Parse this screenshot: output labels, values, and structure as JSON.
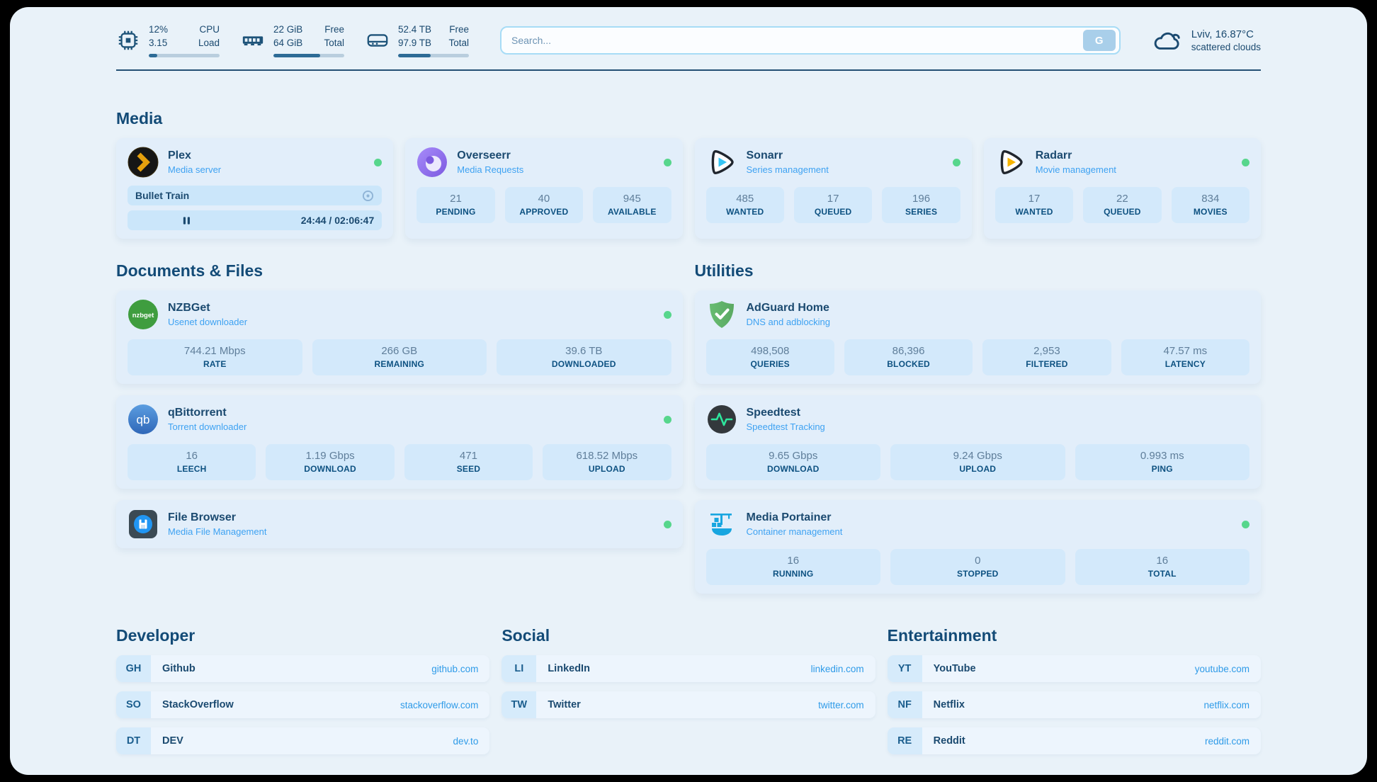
{
  "system": {
    "cpu": {
      "value1": "12%",
      "value2": "3.15",
      "label1": "CPU",
      "label2": "Load",
      "progress": 12
    },
    "ram": {
      "value1": "22 GiB",
      "value2": "64 GiB",
      "label1": "Free",
      "label2": "Total",
      "progress": 66
    },
    "disk": {
      "value1": "52.4 TB",
      "value2": "97.9 TB",
      "label1": "Free",
      "label2": "Total",
      "progress": 46
    }
  },
  "search": {
    "placeholder": "Search...",
    "button_label": "G"
  },
  "weather": {
    "location_temp": "Lviv, 16.87°C",
    "condition": "scattered clouds"
  },
  "media": {
    "title": "Media",
    "plex": {
      "name": "Plex",
      "desc": "Media server",
      "now_playing": "Bullet Train",
      "time": "24:44 / 02:06:47",
      "progress": 19.5
    },
    "overseerr": {
      "name": "Overseerr",
      "desc": "Media Requests",
      "stats": [
        {
          "value": "21",
          "label": "PENDING"
        },
        {
          "value": "40",
          "label": "APPROVED"
        },
        {
          "value": "945",
          "label": "AVAILABLE"
        }
      ]
    },
    "sonarr": {
      "name": "Sonarr",
      "desc": "Series management",
      "stats": [
        {
          "value": "485",
          "label": "WANTED"
        },
        {
          "value": "17",
          "label": "QUEUED"
        },
        {
          "value": "196",
          "label": "SERIES"
        }
      ]
    },
    "radarr": {
      "name": "Radarr",
      "desc": "Movie management",
      "stats": [
        {
          "value": "17",
          "label": "WANTED"
        },
        {
          "value": "22",
          "label": "QUEUED"
        },
        {
          "value": "834",
          "label": "MOVIES"
        }
      ]
    }
  },
  "documents": {
    "title": "Documents & Files",
    "nzbget": {
      "name": "NZBGet",
      "desc": "Usenet downloader",
      "stats": [
        {
          "value": "744.21 Mbps",
          "label": "RATE"
        },
        {
          "value": "266 GB",
          "label": "REMAINING"
        },
        {
          "value": "39.6 TB",
          "label": "DOWNLOADED"
        }
      ]
    },
    "qbittorrent": {
      "name": "qBittorrent",
      "desc": "Torrent downloader",
      "stats": [
        {
          "value": "16",
          "label": "LEECH"
        },
        {
          "value": "1.19 Gbps",
          "label": "DOWNLOAD"
        },
        {
          "value": "471",
          "label": "SEED"
        },
        {
          "value": "618.52 Mbps",
          "label": "UPLOAD"
        }
      ]
    },
    "filebrowser": {
      "name": "File Browser",
      "desc": "Media File Management"
    }
  },
  "utilities": {
    "title": "Utilities",
    "adguard": {
      "name": "AdGuard Home",
      "desc": "DNS and adblocking",
      "stats": [
        {
          "value": "498,508",
          "label": "QUERIES"
        },
        {
          "value": "86,396",
          "label": "BLOCKED"
        },
        {
          "value": "2,953",
          "label": "FILTERED"
        },
        {
          "value": "47.57 ms",
          "label": "LATENCY"
        }
      ]
    },
    "speedtest": {
      "name": "Speedtest",
      "desc": "Speedtest Tracking",
      "stats": [
        {
          "value": "9.65 Gbps",
          "label": "DOWNLOAD"
        },
        {
          "value": "9.24 Gbps",
          "label": "UPLOAD"
        },
        {
          "value": "0.993 ms",
          "label": "PING"
        }
      ]
    },
    "portainer": {
      "name": "Media Portainer",
      "desc": "Container management",
      "stats": [
        {
          "value": "16",
          "label": "RUNNING"
        },
        {
          "value": "0",
          "label": "STOPPED"
        },
        {
          "value": "16",
          "label": "TOTAL"
        }
      ]
    }
  },
  "links": {
    "developer": {
      "title": "Developer",
      "items": [
        {
          "abbr": "GH",
          "name": "Github",
          "url": "github.com"
        },
        {
          "abbr": "SO",
          "name": "StackOverflow",
          "url": "stackoverflow.com"
        },
        {
          "abbr": "DT",
          "name": "DEV",
          "url": "dev.to"
        }
      ]
    },
    "social": {
      "title": "Social",
      "items": [
        {
          "abbr": "LI",
          "name": "LinkedIn",
          "url": "linkedin.com"
        },
        {
          "abbr": "TW",
          "name": "Twitter",
          "url": "twitter.com"
        }
      ]
    },
    "entertainment": {
      "title": "Entertainment",
      "items": [
        {
          "abbr": "YT",
          "name": "YouTube",
          "url": "youtube.com"
        },
        {
          "abbr": "NF",
          "name": "Netflix",
          "url": "netflix.com"
        },
        {
          "abbr": "RE",
          "name": "Reddit",
          "url": "reddit.com"
        }
      ]
    }
  },
  "colors": {
    "status_green": "#57d68c",
    "link_blue": "#2f9be8",
    "navy": "#1b4a70"
  }
}
